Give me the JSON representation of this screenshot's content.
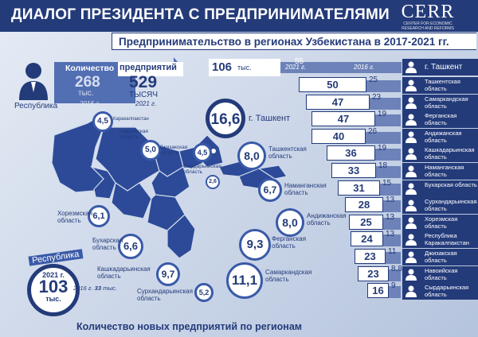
{
  "header": {
    "title": "ДИАЛОГ ПРЕЗИДЕНТА С ПРЕДПРИНИМАТЕЛЯМИ",
    "logo_text": "CERR",
    "logo_sub1": "CENTER FOR ECONOMIC",
    "logo_sub2": "RESEARCH AND REFORMS"
  },
  "subtitle": "Предпринимательство в регионах Узбекистана в 2017-2021 гг.",
  "republic_box": {
    "label_count": "Количество",
    "label_enterprises": "предприятий",
    "label_republic": "Республика",
    "v2016": "268",
    "u2016": "тыс.",
    "y2016": "2016 г.",
    "v2021": "529",
    "u2021": "ТЫСЯЧ",
    "y2021": "2021 г."
  },
  "new_enterprises": {
    "label": "Республика",
    "year2021": "2021 г.",
    "v2021": "103",
    "unit": "тыс.",
    "year2016": "2016 г.",
    "v2016": "33",
    "unit2016": "тыс."
  },
  "footer": "Количество новых предприятий по регионам",
  "bar_top": {
    "v2021": "106",
    "unit": "тыс.",
    "y2021": "2021 г.",
    "v2016": "55",
    "y2016": "2016 г."
  },
  "colors": {
    "navy": "#243b7a",
    "mid": "#3a5aa8",
    "light": "#6c82b8",
    "map": "#2c4a98"
  },
  "chart_data": [
    {
      "type": "bar",
      "title": "Предпринимательство в регионах Узбекистана в 2017-2021 гг.",
      "series_names": [
        "2021 г.",
        "2016 г."
      ],
      "categories": [
        "г. Ташкент",
        "Ташкентская область",
        "Самаркандская область",
        "Ферганская область",
        "Андижанская область",
        "Кашкадарьинская область",
        "Наманганская область",
        "Бухарская область",
        "Сурхандарьинская область",
        "Хорезмская область",
        "Республика Каракалпакстан",
        "Джизакская область",
        "Навоийская область",
        "Сырдарьинская область"
      ],
      "series": [
        {
          "name": "2021 г.",
          "values": [
            106,
            50,
            47,
            47,
            40,
            36,
            33,
            31,
            28,
            25,
            24,
            23,
            23,
            16
          ]
        },
        {
          "name": "2016 г.",
          "values": [
            55,
            25,
            23,
            19,
            26,
            19,
            18,
            15,
            13,
            13,
            13,
            11,
            8.8,
            9
          ]
        }
      ],
      "unit": "тыс."
    },
    {
      "type": "table",
      "title": "Количество новых предприятий по регионам",
      "unit": "тыс.",
      "rows": [
        {
          "region": "г. Ташкент",
          "value": "16,6"
        },
        {
          "region": "Ташкентская область",
          "value": "8,0"
        },
        {
          "region": "Наманганская область",
          "value": "6,7"
        },
        {
          "region": "Андижанская область",
          "value": "8,0"
        },
        {
          "region": "Ферганская область",
          "value": "9,3"
        },
        {
          "region": "Самаркандская область",
          "value": "11,1"
        },
        {
          "region": "Сурхандарьинская область",
          "value": "5,2"
        },
        {
          "region": "Кашкадарьинская область",
          "value": "9,7"
        },
        {
          "region": "Бухарская область",
          "value": "6,6"
        },
        {
          "region": "Хорезмская область",
          "value": "6,1"
        },
        {
          "region": "Каракалпакстан",
          "value": "4,5"
        },
        {
          "region": "Навоийская область",
          "value": "5,0"
        },
        {
          "region": "Джизакская область",
          "value": "4,5"
        },
        {
          "region": "Сырдарьинская область",
          "value": "2,6"
        }
      ]
    }
  ]
}
